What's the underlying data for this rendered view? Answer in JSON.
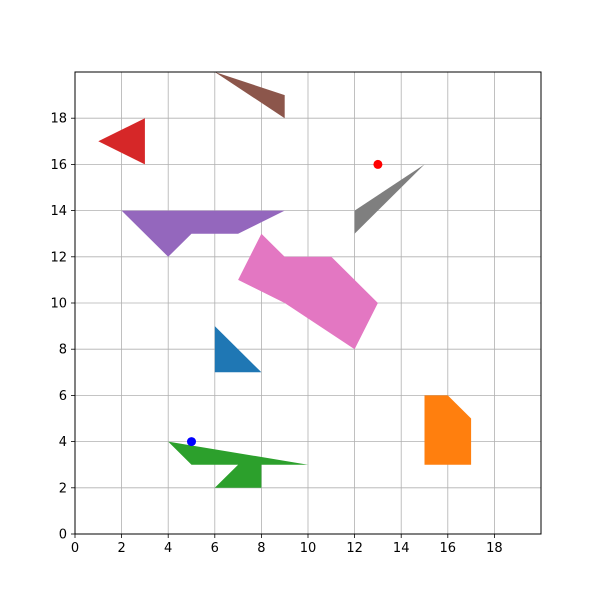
{
  "chart_data": {
    "type": "polygon-scatter",
    "title": "",
    "xlabel": "",
    "ylabel": "",
    "xlim": [
      0,
      20
    ],
    "ylim": [
      0,
      20
    ],
    "grid": true,
    "x_ticks": [
      "0",
      "2",
      "4",
      "6",
      "8",
      "10",
      "12",
      "14",
      "16",
      "18"
    ],
    "y_ticks": [
      "0",
      "2",
      "4",
      "6",
      "8",
      "10",
      "12",
      "14",
      "16",
      "18"
    ],
    "shapes": [
      {
        "id": "brown-shape",
        "color": "#8c564b",
        "points": [
          [
            6,
            20
          ],
          [
            9,
            19
          ],
          [
            9,
            18
          ],
          [
            6,
            20
          ]
        ]
      },
      {
        "id": "red-triangle",
        "color": "#d62728",
        "points": [
          [
            1,
            17
          ],
          [
            3,
            18
          ],
          [
            3,
            16
          ]
        ]
      },
      {
        "id": "gray-shape",
        "color": "#7f7f7f",
        "points": [
          [
            12,
            13
          ],
          [
            15,
            16
          ],
          [
            12,
            14
          ]
        ]
      },
      {
        "id": "purple-shape",
        "color": "#9467bd",
        "points": [
          [
            2,
            14
          ],
          [
            9,
            14
          ],
          [
            7,
            13
          ],
          [
            5,
            13
          ],
          [
            4,
            12
          ]
        ]
      },
      {
        "id": "pink-shape",
        "color": "#e377c2",
        "points": [
          [
            8,
            13
          ],
          [
            9,
            12
          ],
          [
            11,
            12
          ],
          [
            13,
            10
          ],
          [
            12,
            8
          ],
          [
            9,
            10
          ],
          [
            7,
            11
          ]
        ]
      },
      {
        "id": "blue-triangle",
        "color": "#1f77b4",
        "points": [
          [
            6,
            9
          ],
          [
            8,
            7
          ],
          [
            6,
            7
          ]
        ]
      },
      {
        "id": "orange-shape",
        "color": "#ff7f0e",
        "points": [
          [
            15,
            6
          ],
          [
            16,
            6
          ],
          [
            17,
            5
          ],
          [
            17,
            3
          ],
          [
            15,
            3
          ]
        ]
      },
      {
        "id": "green-shape",
        "color": "#2ca02c",
        "points": [
          [
            4,
            4
          ],
          [
            10,
            3
          ],
          [
            8,
            3
          ],
          [
            8,
            2
          ],
          [
            6,
            2
          ],
          [
            7,
            3
          ],
          [
            5,
            3
          ]
        ]
      }
    ],
    "points": [
      {
        "id": "red-point",
        "color": "#ff0000",
        "x": 13,
        "y": 16
      },
      {
        "id": "blue-point",
        "color": "#0000ff",
        "x": 5,
        "y": 4
      }
    ]
  }
}
